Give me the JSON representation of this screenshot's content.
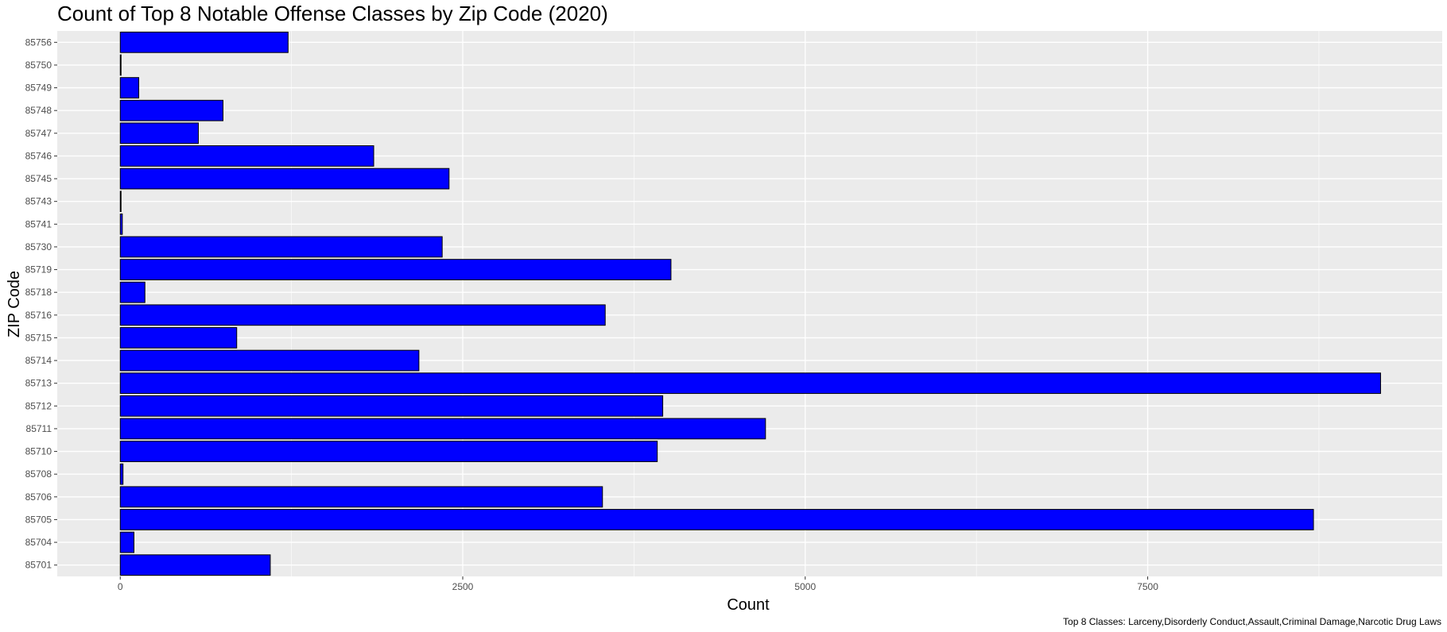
{
  "chart_data": {
    "type": "bar",
    "orientation": "horizontal",
    "title": "Count of Top 8 Notable Offense Classes by Zip Code (2020)",
    "xlabel": "Count",
    "ylabel": "ZIP Code",
    "caption": "Top 8 Classes: Larceny,Disorderly Conduct,Assault,Criminal Damage,Narcotic Drug Laws",
    "categories": [
      "85701",
      "85704",
      "85705",
      "85706",
      "85708",
      "85710",
      "85711",
      "85712",
      "85713",
      "85714",
      "85715",
      "85716",
      "85718",
      "85719",
      "85730",
      "85741",
      "85743",
      "85745",
      "85746",
      "85747",
      "85748",
      "85749",
      "85750",
      "85756"
    ],
    "values": [
      1095,
      100,
      8710,
      3520,
      20,
      3920,
      4710,
      3960,
      9200,
      2180,
      850,
      3540,
      180,
      4020,
      2350,
      15,
      5,
      2400,
      1850,
      570,
      750,
      135,
      5,
      1225
    ],
    "xlim": [
      -460,
      9650
    ],
    "x_ticks": [
      0,
      2500,
      5000,
      7500
    ],
    "x_tick_labels": [
      "0",
      "2500",
      "5000",
      "7500"
    ],
    "grid": true,
    "bar_color": "#0000ff",
    "bar_border": "#000000",
    "panel_background": "#ebebeb",
    "grid_color": "#ffffff"
  }
}
